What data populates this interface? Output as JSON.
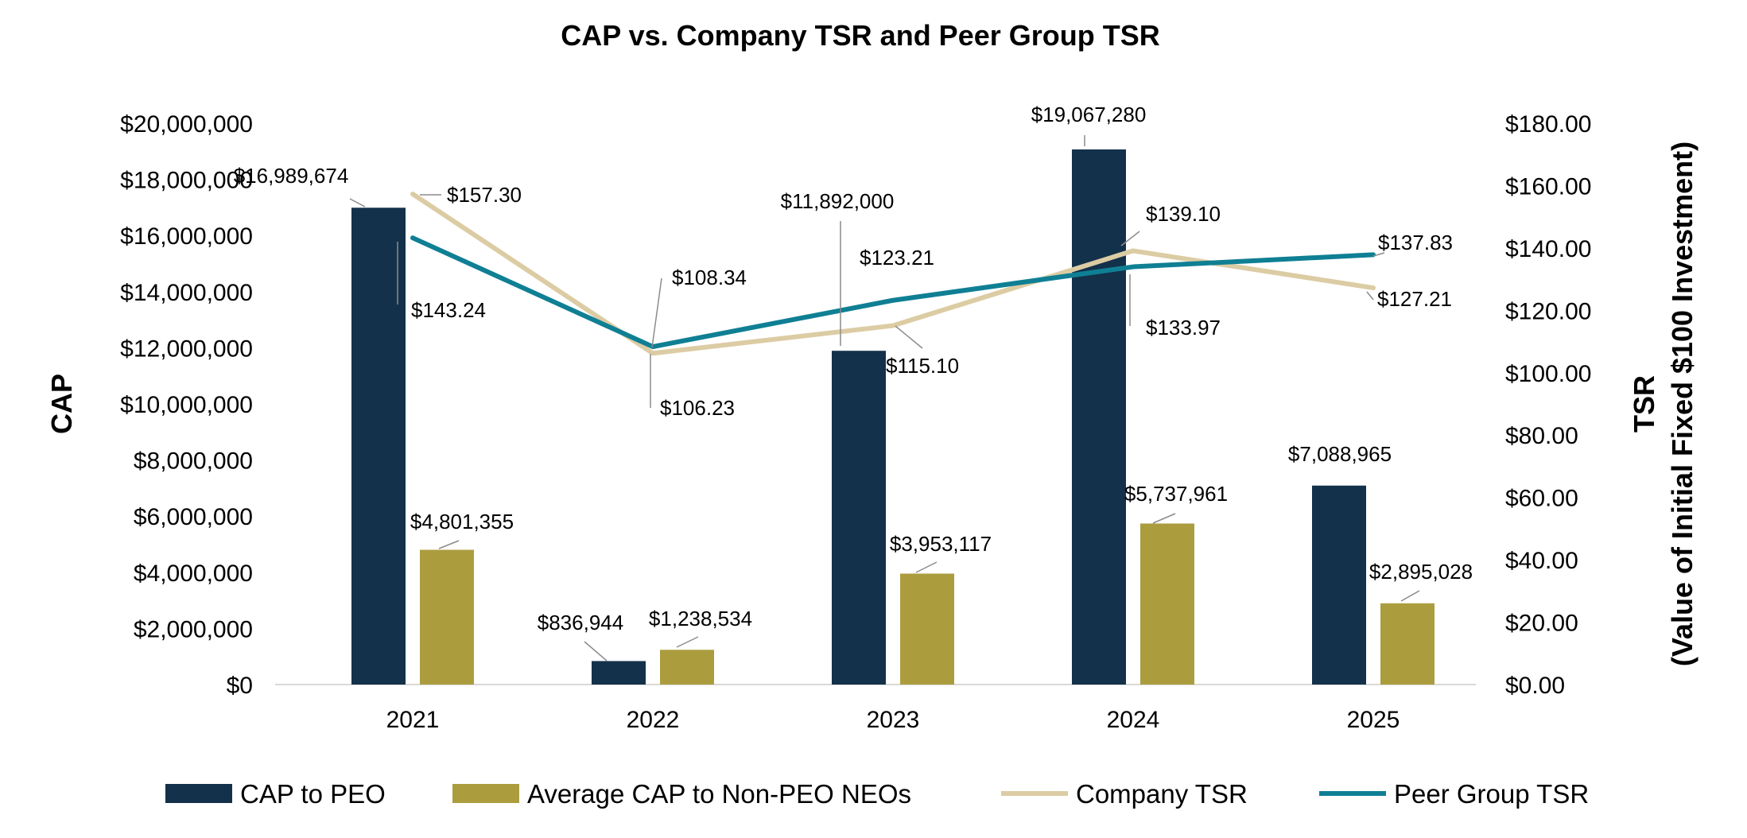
{
  "chart_data": {
    "type": "bar",
    "title": "CAP vs. Company TSR and Peer Group TSR",
    "categories": [
      "2021",
      "2022",
      "2023",
      "2024",
      "2025"
    ],
    "y_left": {
      "label": "CAP",
      "range": [
        0,
        20000000
      ],
      "ticks": [
        "$0",
        "$2,000,000",
        "$4,000,000",
        "$6,000,000",
        "$8,000,000",
        "$10,000,000",
        "$12,000,000",
        "$14,000,000",
        "$16,000,000",
        "$18,000,000",
        "$20,000,000"
      ]
    },
    "y_right": {
      "label_line1": "TSR",
      "label_line2": "(Value of Initial Fixed $100 Investment)",
      "range": [
        0,
        180
      ],
      "ticks": [
        "$0.00",
        "$20.00",
        "$40.00",
        "$60.00",
        "$80.00",
        "$100.00",
        "$120.00",
        "$140.00",
        "$160.00",
        "$180.00"
      ]
    },
    "series": [
      {
        "name": "CAP to PEO",
        "kind": "bar",
        "axis": "left",
        "color": "#13314a",
        "values": [
          16989674,
          836944,
          11892000,
          19067280,
          7088965
        ],
        "labels": [
          "$16,989,674",
          "$836,944",
          "$11,892,000",
          "$19,067,280",
          "$7,088,965"
        ]
      },
      {
        "name": "Average CAP to Non-PEO NEOs",
        "kind": "bar",
        "axis": "left",
        "color": "#ab9d3e",
        "values": [
          4801355,
          1238534,
          3953117,
          5737961,
          2895028
        ],
        "labels": [
          "$4,801,355",
          "$1,238,534",
          "$3,953,117",
          "$5,737,961",
          "$2,895,028"
        ]
      },
      {
        "name": "Company TSR",
        "kind": "line",
        "axis": "right",
        "color": "#dccca4",
        "values": [
          157.3,
          106.23,
          115.1,
          139.1,
          127.21
        ],
        "labels": [
          "$157.30",
          "$106.23",
          "$115.10",
          "$139.10",
          "$127.21"
        ]
      },
      {
        "name": "Peer Group TSR",
        "kind": "line",
        "axis": "right",
        "color": "#0f7f94",
        "values": [
          143.24,
          108.34,
          123.21,
          133.97,
          137.83
        ],
        "labels": [
          "$143.24",
          "$108.34",
          "$123.21",
          "$133.97",
          "$137.83"
        ]
      }
    ],
    "legend_position": "bottom",
    "grid": false
  }
}
